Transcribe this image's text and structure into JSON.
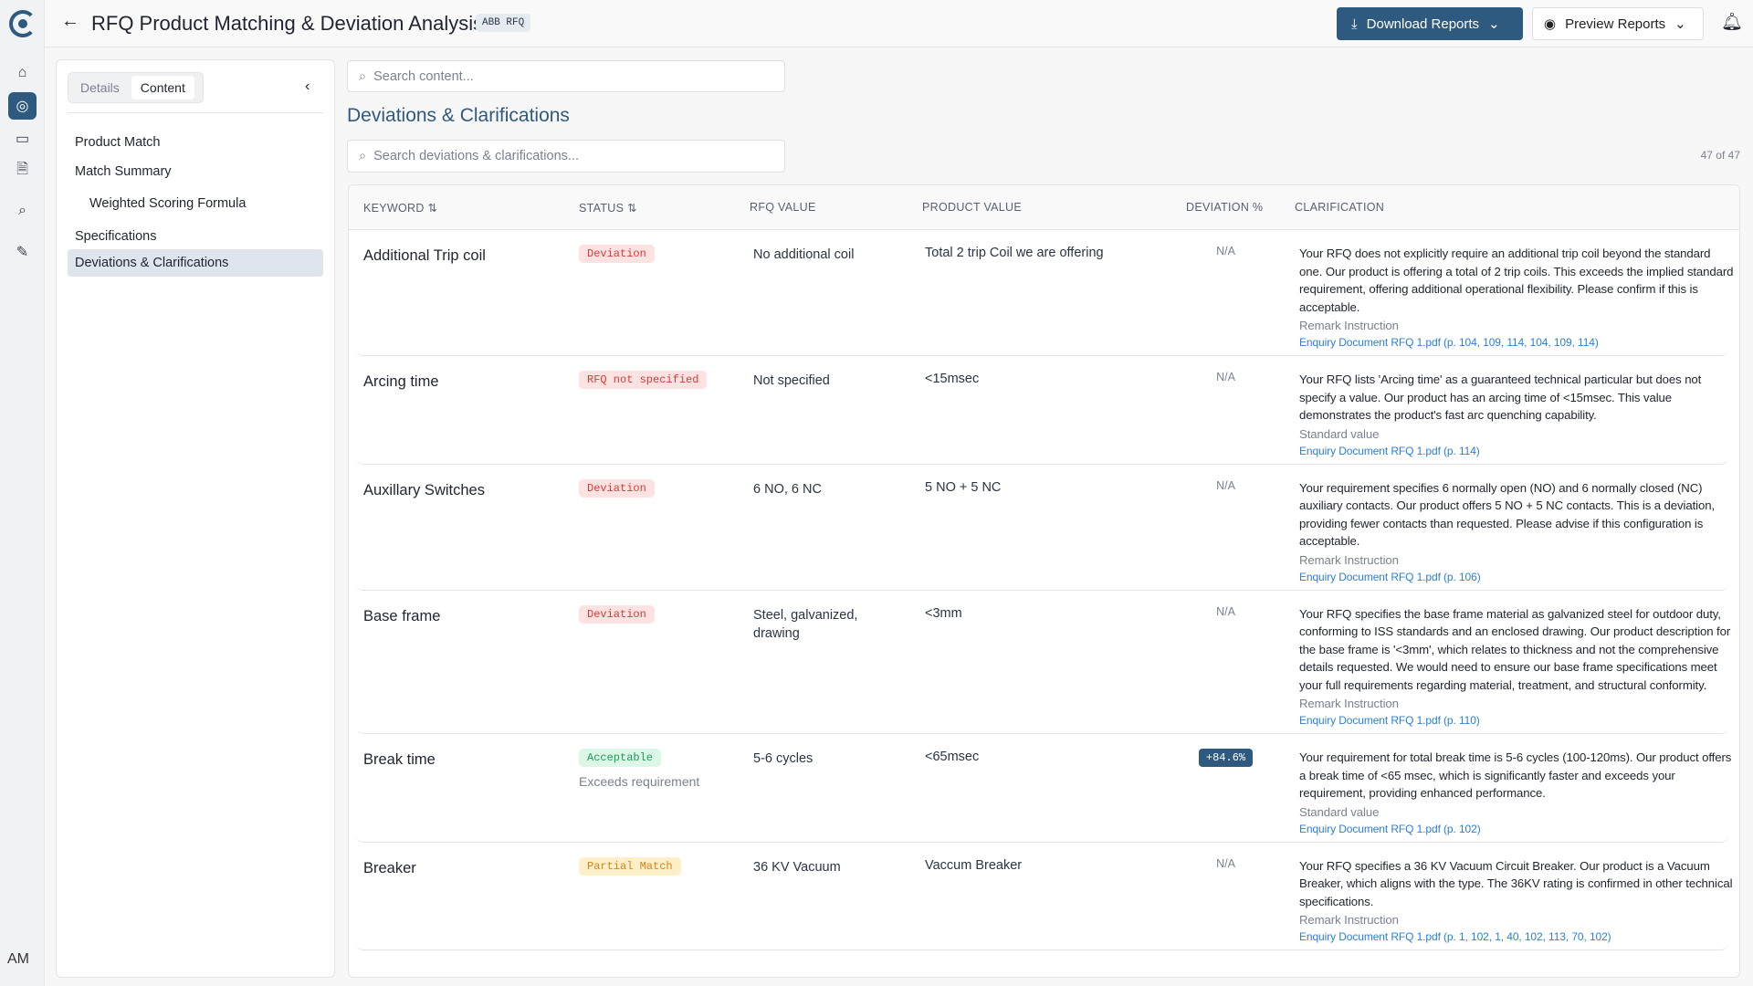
{
  "app": {
    "title": "RFQ Product Matching & Deviation Analysis",
    "badge": "ABB RFQ",
    "user_initials": "AM"
  },
  "header": {
    "download_label": "Download Reports",
    "preview_label": "Preview Reports"
  },
  "rail": {
    "icons": [
      "home-icon",
      "target-icon",
      "folder-icon",
      "document-search-icon",
      "search-icon",
      "edit-icon"
    ],
    "active": 1
  },
  "panel": {
    "tabs": [
      "Details",
      "Content"
    ],
    "active_tab": "Content",
    "nav": [
      {
        "label": "Product Match",
        "sub": false
      },
      {
        "label": "Match Summary",
        "sub": false
      },
      {
        "label": "Weighted Scoring Formula",
        "sub": true
      },
      {
        "label": "Specifications",
        "sub": false
      },
      {
        "label": "Deviations & Clarifications",
        "sub": false,
        "active": true
      }
    ]
  },
  "main": {
    "search_placeholder": "Search content...",
    "heading": "Deviations & Clarifications",
    "dev_search_placeholder": "Search deviations & clarifications...",
    "count": "47 of 47"
  },
  "table": {
    "columns": [
      "KEYWORD",
      "STATUS",
      "RFQ VALUE",
      "PRODUCT VALUE",
      "DEVIATION %",
      "CLARIFICATION"
    ],
    "status_colors": {
      "Deviation": {
        "bg": "#fde2e2",
        "fg": "#d93a3a"
      },
      "RFQ not specified": {
        "bg": "#fde2e2",
        "fg": "#d93a3a"
      },
      "Acceptable": {
        "bg": "#dcf7e6",
        "fg": "#1f9d55"
      },
      "Partial Match": {
        "bg": "#fdf0c8",
        "fg": "#d9811a"
      }
    },
    "rows": [
      {
        "keyword": "Additional Trip coil",
        "status": "Deviation",
        "status_note": "",
        "rfq_value": "No additional coil",
        "product_value": "Total 2 trip Coil we are offering",
        "deviation": "N/A",
        "clarification": "Your RFQ does not explicitly require an additional trip coil beyond the standard one. Our product is offering a total of 2 trip coils. This exceeds the implied standard requirement, offering additional operational flexibility. Please confirm if this is acceptable.",
        "remark": "Remark Instruction",
        "reference": "Enquiry Document RFQ 1.pdf (p. 104, 109, 114, 104, 109, 114)"
      },
      {
        "keyword": "Arcing time",
        "status": "RFQ not specified",
        "status_note": "",
        "rfq_value": "Not specified",
        "product_value": "<15msec",
        "deviation": "N/A",
        "clarification": "Your RFQ lists 'Arcing time' as a guaranteed technical particular but does not specify a value. Our product has an arcing time of <15msec. This value demonstrates the product's fast arc quenching capability.",
        "remark": "Standard value",
        "reference": "Enquiry Document RFQ 1.pdf (p. 114)"
      },
      {
        "keyword": "Auxillary Switches",
        "status": "Deviation",
        "status_note": "",
        "rfq_value": "6 NO, 6 NC",
        "product_value": "5 NO + 5 NC",
        "deviation": "N/A",
        "clarification": "Your requirement specifies 6 normally open (NO) and 6 normally closed (NC) auxiliary contacts. Our product offers 5 NO + 5 NC contacts. This is a deviation, providing fewer contacts than requested. Please advise if this configuration is acceptable.",
        "remark": "Remark Instruction",
        "reference": "Enquiry Document RFQ 1.pdf (p. 106)"
      },
      {
        "keyword": "Base frame",
        "status": "Deviation",
        "status_note": "",
        "rfq_value": "Steel, galvanized, drawing",
        "product_value": "<3mm",
        "deviation": "N/A",
        "clarification": "Your RFQ specifies the base frame material as galvanized steel for outdoor duty, conforming to ISS standards and an enclosed drawing. Our product description for the base frame is '<3mm', which relates to thickness and not the comprehensive details requested. We would need to ensure our base frame specifications meet your full requirements regarding material, treatment, and structural conformity.",
        "remark": "Remark Instruction",
        "reference": "Enquiry Document RFQ 1.pdf (p. 110)"
      },
      {
        "keyword": "Break time",
        "status": "Acceptable",
        "status_note": "Exceeds requirement",
        "rfq_value": "5-6 cycles",
        "product_value": "<65msec",
        "deviation": "+84.6%",
        "clarification": "Your requirement for total break time is 5-6 cycles (100-120ms). Our product offers a break time of <65 msec, which is significantly faster and exceeds your requirement, providing enhanced performance.",
        "remark": "Standard value",
        "reference": "Enquiry Document RFQ 1.pdf (p. 102)"
      },
      {
        "keyword": "Breaker",
        "status": "Partial Match",
        "status_note": "",
        "rfq_value": "36 KV Vacuum",
        "product_value": "Vaccum Breaker",
        "deviation": "N/A",
        "clarification": "Your RFQ specifies a 36 KV Vacuum Circuit Breaker. Our product is a Vacuum Breaker, which aligns with the type. The 36KV rating is confirmed in other technical specifications.",
        "remark": "Remark Instruction",
        "reference": "Enquiry Document RFQ 1.pdf (p. 1, 102, 1, 40, 102, 113, 70, 102)"
      }
    ]
  }
}
